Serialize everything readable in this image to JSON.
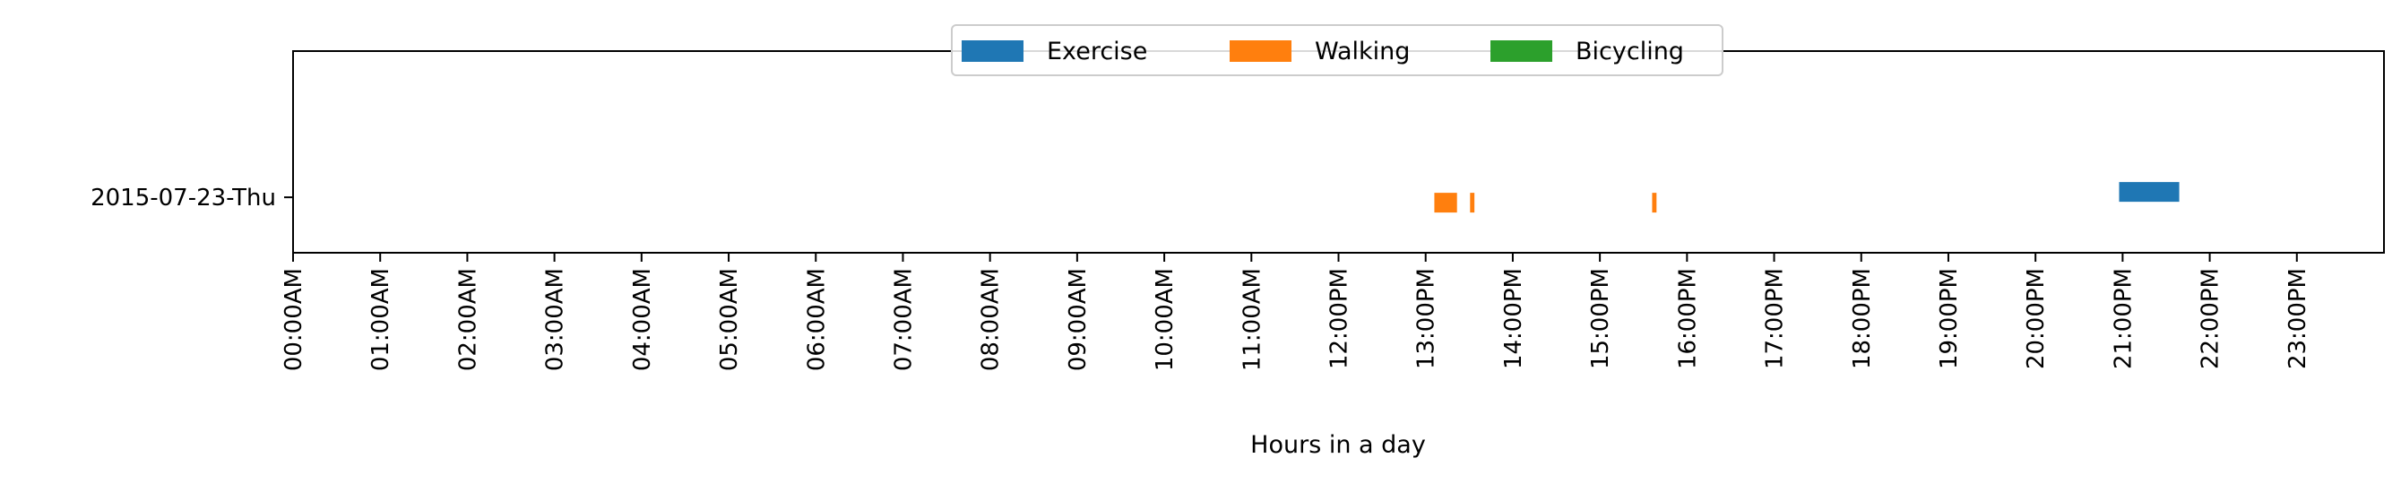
{
  "chart_data": {
    "type": "timeline",
    "title": "",
    "xlabel": "Hours in a day",
    "ylabel": "",
    "xlim": [
      0,
      24
    ],
    "x_ticks": [
      0,
      1,
      2,
      3,
      4,
      5,
      6,
      7,
      8,
      9,
      10,
      11,
      12,
      13,
      14,
      15,
      16,
      17,
      18,
      19,
      20,
      21,
      22,
      23
    ],
    "x_tick_labels": [
      "00:00AM",
      "01:00AM",
      "02:00AM",
      "03:00AM",
      "04:00AM",
      "05:00AM",
      "06:00AM",
      "07:00AM",
      "08:00AM",
      "09:00AM",
      "10:00AM",
      "11:00AM",
      "12:00PM",
      "13:00PM",
      "14:00PM",
      "15:00PM",
      "16:00PM",
      "17:00PM",
      "18:00PM",
      "19:00PM",
      "20:00PM",
      "21:00PM",
      "22:00PM",
      "23:00PM"
    ],
    "rows": [
      "2015-07-23-Thu"
    ],
    "grid": false,
    "legend_position": "top-center",
    "series": [
      {
        "name": "Exercise",
        "color": "#1f77b4",
        "row_offset": -1,
        "intervals": [
          {
            "row": "2015-07-23-Thu",
            "start": 20.96,
            "end": 21.65
          }
        ]
      },
      {
        "name": "Walking",
        "color": "#ff7f0e",
        "row_offset": 1,
        "intervals": [
          {
            "row": "2015-07-23-Thu",
            "start": 13.1,
            "end": 13.36
          },
          {
            "row": "2015-07-23-Thu",
            "start": 13.51,
            "end": 13.56
          },
          {
            "row": "2015-07-23-Thu",
            "start": 15.6,
            "end": 15.65
          }
        ]
      },
      {
        "name": "Bicycling",
        "color": "#2ca02c",
        "row_offset": 0,
        "intervals": []
      }
    ]
  }
}
